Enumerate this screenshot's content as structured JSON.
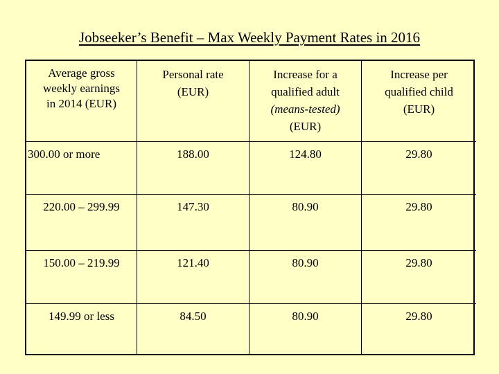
{
  "title": "Jobseeker’s Benefit – Max Weekly Payment Rates in 2016",
  "headers": {
    "col1": [
      "Average gross",
      "weekly earnings",
      "in 2014 (EUR)"
    ],
    "col2": [
      "Personal rate",
      "(EUR)"
    ],
    "col3": [
      "Increase for a",
      "qualified adult",
      "(means-tested)",
      "(EUR)"
    ],
    "col4": [
      "Increase per",
      "qualified child",
      "(EUR)"
    ]
  },
  "rows": [
    {
      "earnings": "300.00 or more",
      "personal": "188.00",
      "adult": "124.80",
      "child": "29.80"
    },
    {
      "earnings": "220.00 – 299.99",
      "personal": "147.30",
      "adult": "80.90",
      "child": "29.80"
    },
    {
      "earnings": "150.00 – 219.99",
      "personal": "121.40",
      "adult": "80.90",
      "child": "29.80"
    },
    {
      "earnings": "149.99  or less",
      "personal": "84.50",
      "adult": "80.90",
      "child": "29.80"
    }
  ]
}
